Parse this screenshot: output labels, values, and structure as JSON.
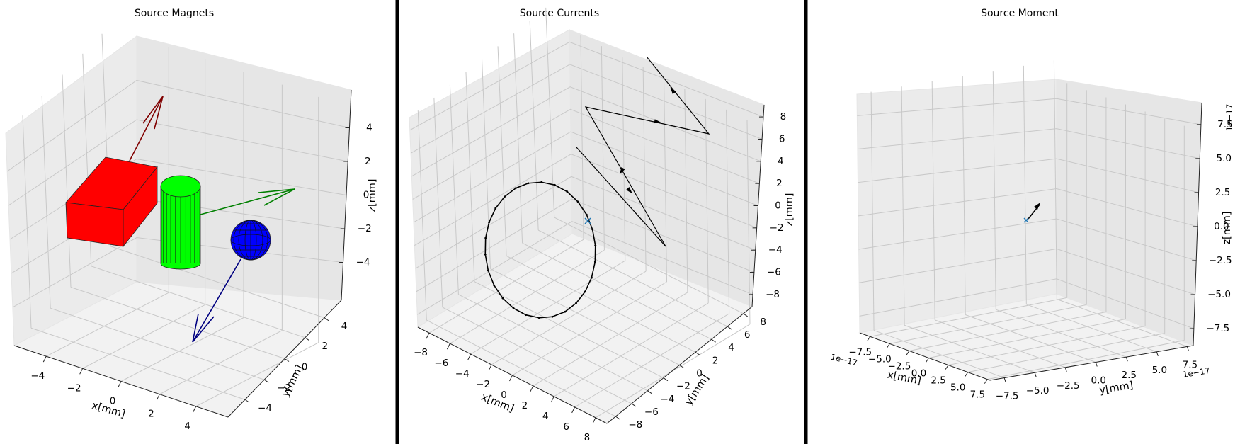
{
  "figure": {
    "separator_color": "#000000",
    "panels": [
      {
        "title": "Source Magnets",
        "x_label": "x[mm]",
        "y_label": "y[mm]",
        "z_label": "z[mm]",
        "x_ticks": [
          "−4",
          "−2",
          "0",
          "2",
          "4"
        ],
        "y_ticks": [
          "−4",
          "−2",
          "0",
          "2",
          "4"
        ],
        "z_ticks": [
          "4",
          "2",
          "0",
          "−2",
          "−4"
        ],
        "x_range": [
          -5.5,
          5.5
        ],
        "y_range": [
          -5.5,
          5.5
        ],
        "z_range": [
          -6,
          6
        ]
      },
      {
        "title": "Source Currents",
        "x_label": "x[mm]",
        "y_label": "y[mm]",
        "z_label": "z[mm]",
        "x_ticks": [
          "−8",
          "−6",
          "−4",
          "−2",
          "0",
          "2",
          "4",
          "6",
          "8"
        ],
        "y_ticks": [
          "−8",
          "−6",
          "−4",
          "−2",
          "0",
          "2",
          "4",
          "6",
          "8"
        ],
        "z_ticks": [
          "8",
          "6",
          "4",
          "2",
          "0",
          "−2",
          "−4",
          "−6",
          "−8"
        ],
        "x_range": [
          -9,
          9
        ],
        "y_range": [
          -9,
          9
        ],
        "z_range": [
          -9,
          9
        ]
      },
      {
        "title": "Source Moment",
        "x_label": "x[mm]",
        "y_label": "y[mm]",
        "z_label": "z[mm]",
        "x_offset": "1e−17",
        "y_offset": "1e−17",
        "z_offset": "1e−17",
        "x_ticks": [
          "−7.5",
          "−5.0",
          "−2.5",
          "0.0",
          "2.5",
          "5.0",
          "7.5"
        ],
        "y_ticks": [
          "−7.5",
          "−5.0",
          "−2.5",
          "0.0",
          "2.5",
          "5.0",
          "7.5"
        ],
        "z_ticks": [
          "7.5",
          "5.0",
          "2.5",
          "0.0",
          "−2.5",
          "−5.0",
          "−7.5"
        ],
        "x_range": [
          -1e-16,
          1e-16
        ],
        "y_range": [
          -1e-16,
          1e-16
        ],
        "z_range": [
          -1e-16,
          1e-16
        ]
      }
    ]
  },
  "chart_data": [
    {
      "type": "scatter",
      "subtype": "3d-sources",
      "title": "Source Magnets",
      "xlabel": "x[mm]",
      "ylabel": "y[mm]",
      "zlabel": "z[mm]",
      "grid": true,
      "objects": [
        {
          "kind": "box",
          "color": "#ff0000",
          "center": [
            -2,
            0,
            0
          ],
          "magnetization_arrow_color": "#800000"
        },
        {
          "kind": "cylinder",
          "color": "#00ff00",
          "center": [
            0,
            0,
            0
          ],
          "magnetization_arrow_color": "#008000"
        },
        {
          "kind": "sphere",
          "color": "#0000ff",
          "center": [
            2,
            0,
            0
          ],
          "magnetization_arrow_color": "#000080"
        }
      ]
    },
    {
      "type": "line",
      "subtype": "3d-currents",
      "title": "Source Currents",
      "xlabel": "x[mm]",
      "ylabel": "y[mm]",
      "zlabel": "z[mm]",
      "grid": true,
      "series": [
        {
          "kind": "circular",
          "color": "#000000"
        },
        {
          "kind": "line",
          "color": "#000000"
        }
      ],
      "origin_marker_color": "#1f77b4"
    },
    {
      "type": "scatter",
      "subtype": "3d-dipole",
      "title": "Source Moment",
      "xlabel": "x[mm]",
      "ylabel": "y[mm]",
      "zlabel": "z[mm]",
      "grid": true,
      "dipole_color": "#000000",
      "origin_marker_color": "#1f77b4",
      "axis_scale": "1e−17"
    }
  ]
}
